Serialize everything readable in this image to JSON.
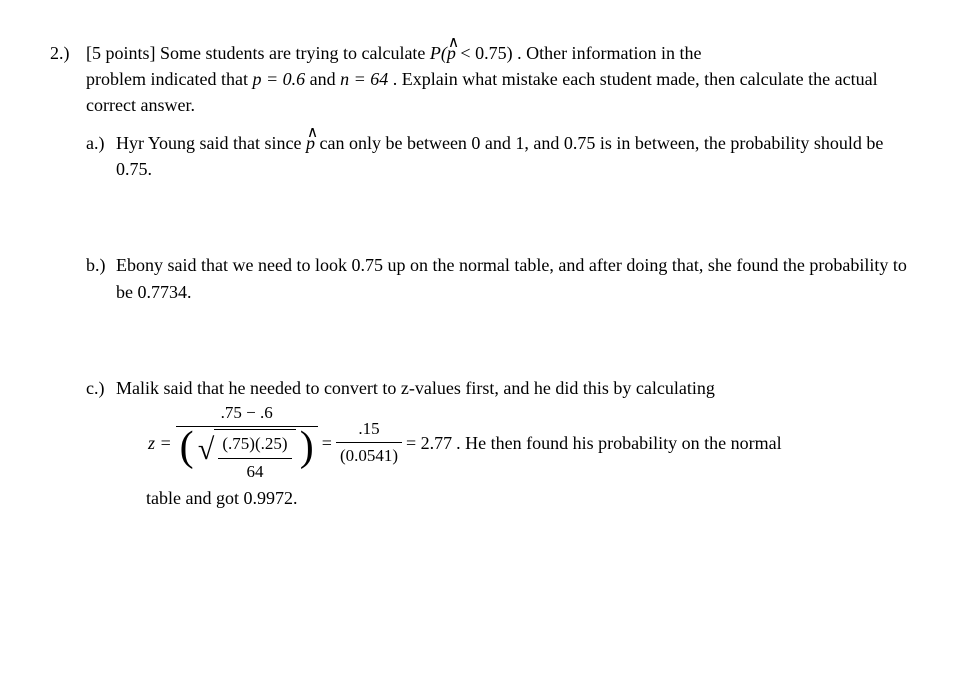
{
  "problem": {
    "number": "2.)",
    "points": "[5 points]",
    "intro_a": "Some students are trying to calculate ",
    "phat_expr_open": "P(",
    "phat_sym": "p",
    "phat_ineq": " < 0.75)",
    "intro_b": ".  Other information in the",
    "intro_c": "problem indicated that ",
    "p_eq": "p = 0.6",
    "and_txt": " and ",
    "n_eq": "n = 64",
    "intro_d": ".  Explain what mistake each student made, then calculate the actual correct answer."
  },
  "a": {
    "label": "a.)",
    "text_a": "Hyr Young said that since ",
    "phat_sym": "p",
    "text_b": " can only be between 0 and 1, and 0.75 is in between, the probability should be 0.75."
  },
  "b": {
    "label": "b.)",
    "text": "Ebony said that we need to look 0.75 up on the normal table, and after doing that, she found the probability to be 0.7734."
  },
  "c": {
    "label": "c.)",
    "text_a": "Malik said that he needed to convert to z-values first, and he did this by calculating",
    "z_eq": "z =",
    "numer1": ".75 − .6",
    "sqrt_numer": "(.75)(.25)",
    "sqrt_denom": "64",
    "eq1": "=",
    "numer2": ".15",
    "denom2": "(0.0541)",
    "eq2": "= 2.77",
    "tail": ".  He then found his probability on the normal",
    "after": "table and got 0.9972."
  }
}
